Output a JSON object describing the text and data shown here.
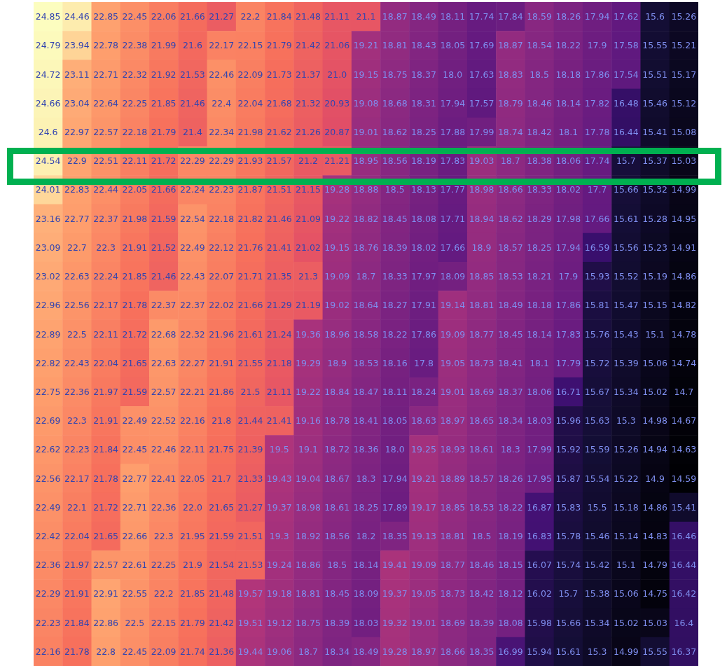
{
  "chart_data": {
    "type": "heatmap",
    "data_labels": true,
    "categories": [
      null,
      null,
      null,
      null,
      null,
      null,
      null,
      null,
      null,
      null,
      null,
      null,
      null,
      null,
      null,
      null,
      null,
      null,
      null,
      null,
      null,
      null,
      null
    ],
    "y_categories": [
      null,
      null,
      null,
      null,
      null,
      null,
      null,
      null,
      null,
      null,
      null,
      null,
      null,
      null,
      null,
      null,
      null,
      null,
      null,
      null,
      null,
      null,
      null
    ],
    "cells": [
      [
        24.85,
        24.46,
        22.85,
        22.45,
        22.06,
        21.66,
        21.27,
        22.2,
        21.84,
        21.48,
        21.11,
        21.1,
        18.87,
        18.49,
        18.11,
        17.74,
        17.84,
        18.59,
        18.26,
        17.94,
        17.62,
        15.6,
        15.26
      ],
      [
        24.79,
        23.94,
        22.78,
        22.38,
        21.99,
        21.6,
        22.17,
        22.15,
        21.79,
        21.42,
        21.06,
        19.21,
        18.81,
        18.43,
        18.05,
        17.69,
        18.87,
        18.54,
        18.22,
        17.9,
        17.58,
        15.55,
        15.21
      ],
      [
        24.72,
        23.11,
        22.71,
        22.32,
        21.92,
        21.53,
        22.46,
        22.09,
        21.73,
        21.37,
        21.0,
        19.15,
        18.75,
        18.37,
        18.0,
        17.63,
        18.83,
        18.5,
        18.18,
        17.86,
        17.54,
        15.51,
        15.17
      ],
      [
        24.66,
        23.04,
        22.64,
        22.25,
        21.85,
        21.46,
        22.4,
        22.04,
        21.68,
        21.32,
        20.93,
        19.08,
        18.68,
        18.31,
        17.94,
        17.57,
        18.79,
        18.46,
        18.14,
        17.82,
        16.48,
        15.46,
        15.12
      ],
      [
        24.6,
        22.97,
        22.57,
        22.18,
        21.79,
        21.4,
        22.34,
        21.98,
        21.62,
        21.26,
        20.87,
        19.01,
        18.62,
        18.25,
        17.88,
        17.99,
        18.74,
        18.42,
        18.1,
        17.78,
        16.44,
        15.41,
        15.08
      ],
      [
        24.54,
        22.9,
        22.51,
        22.11,
        21.72,
        22.29,
        22.29,
        21.93,
        21.57,
        21.2,
        21.21,
        18.95,
        18.56,
        18.19,
        17.83,
        19.03,
        18.7,
        18.38,
        18.06,
        17.74,
        15.7,
        15.37,
        15.03
      ],
      [
        24.01,
        22.83,
        22.44,
        22.05,
        21.66,
        22.24,
        22.23,
        21.87,
        21.51,
        21.15,
        19.28,
        18.88,
        18.5,
        18.13,
        17.77,
        18.98,
        18.66,
        18.33,
        18.02,
        17.7,
        15.66,
        15.32,
        14.99
      ],
      [
        23.16,
        22.77,
        22.37,
        21.98,
        21.59,
        22.54,
        22.18,
        21.82,
        21.46,
        21.09,
        19.22,
        18.82,
        18.45,
        18.08,
        17.71,
        18.94,
        18.62,
        18.29,
        17.98,
        17.66,
        15.61,
        15.28,
        14.95
      ],
      [
        23.09,
        22.7,
        22.3,
        21.91,
        21.52,
        22.49,
        22.12,
        21.76,
        21.41,
        21.02,
        19.15,
        18.76,
        18.39,
        18.02,
        17.66,
        18.9,
        18.57,
        18.25,
        17.94,
        16.59,
        15.56,
        15.23,
        14.91
      ],
      [
        23.02,
        22.63,
        22.24,
        21.85,
        21.46,
        22.43,
        22.07,
        21.71,
        21.35,
        21.3,
        19.09,
        18.7,
        18.33,
        17.97,
        18.09,
        18.85,
        18.53,
        18.21,
        17.9,
        15.93,
        15.52,
        15.19,
        14.86
      ],
      [
        22.96,
        22.56,
        22.17,
        21.78,
        22.37,
        22.37,
        22.02,
        21.66,
        21.29,
        21.19,
        19.02,
        18.64,
        18.27,
        17.91,
        19.14,
        18.81,
        18.49,
        18.18,
        17.86,
        15.81,
        15.47,
        15.15,
        14.82
      ],
      [
        22.89,
        22.5,
        22.11,
        21.72,
        22.68,
        22.32,
        21.96,
        21.61,
        21.24,
        19.36,
        18.96,
        18.58,
        18.22,
        17.86,
        19.09,
        18.77,
        18.45,
        18.14,
        17.83,
        15.76,
        15.43,
        15.1,
        14.78
      ],
      [
        22.82,
        22.43,
        22.04,
        21.65,
        22.63,
        22.27,
        21.91,
        21.55,
        21.18,
        19.29,
        18.9,
        18.53,
        18.16,
        17.8,
        19.05,
        18.73,
        18.41,
        18.1,
        17.79,
        15.72,
        15.39,
        15.06,
        14.74
      ],
      [
        22.75,
        22.36,
        21.97,
        21.59,
        22.57,
        22.21,
        21.86,
        21.5,
        21.11,
        19.22,
        18.84,
        18.47,
        18.11,
        18.24,
        19.01,
        18.69,
        18.37,
        18.06,
        16.71,
        15.67,
        15.34,
        15.02,
        14.7
      ],
      [
        22.69,
        22.3,
        21.91,
        22.49,
        22.52,
        22.16,
        21.8,
        21.44,
        21.41,
        19.16,
        18.78,
        18.41,
        18.05,
        18.63,
        18.97,
        18.65,
        18.34,
        18.03,
        15.96,
        15.63,
        15.3,
        14.98,
        14.67
      ],
      [
        22.62,
        22.23,
        21.84,
        22.45,
        22.46,
        22.11,
        21.75,
        21.39,
        19.5,
        19.1,
        18.72,
        18.36,
        18.0,
        19.25,
        18.93,
        18.61,
        18.3,
        17.99,
        15.92,
        15.59,
        15.26,
        14.94,
        14.63
      ],
      [
        22.56,
        22.17,
        21.78,
        22.77,
        22.41,
        22.05,
        21.7,
        21.33,
        19.43,
        19.04,
        18.67,
        18.3,
        17.94,
        19.21,
        18.89,
        18.57,
        18.26,
        17.95,
        15.87,
        15.54,
        15.22,
        14.9,
        14.59
      ],
      [
        22.49,
        22.1,
        21.72,
        22.71,
        22.36,
        22.0,
        21.65,
        21.27,
        19.37,
        18.98,
        18.61,
        18.25,
        17.89,
        19.17,
        18.85,
        18.53,
        18.22,
        16.87,
        15.83,
        15.5,
        15.18,
        14.86,
        15.41
      ],
      [
        22.42,
        22.04,
        21.65,
        22.66,
        22.3,
        21.95,
        21.59,
        21.51,
        19.3,
        18.92,
        18.56,
        18.2,
        18.35,
        19.13,
        18.81,
        18.5,
        18.19,
        16.83,
        15.78,
        15.46,
        15.14,
        14.83,
        16.46
      ],
      [
        22.36,
        21.97,
        22.57,
        22.61,
        22.25,
        21.9,
        21.54,
        21.53,
        19.24,
        18.86,
        18.5,
        18.14,
        19.41,
        19.09,
        18.77,
        18.46,
        18.15,
        16.07,
        15.74,
        15.42,
        15.1,
        14.79,
        16.44
      ],
      [
        22.29,
        21.91,
        22.91,
        22.55,
        22.2,
        21.85,
        21.48,
        19.57,
        19.18,
        18.81,
        18.45,
        18.09,
        19.37,
        19.05,
        18.73,
        18.42,
        18.12,
        16.02,
        15.7,
        15.38,
        15.06,
        14.75,
        16.42
      ],
      [
        22.23,
        21.84,
        22.86,
        22.5,
        22.15,
        21.79,
        21.42,
        19.51,
        19.12,
        18.75,
        18.39,
        18.03,
        19.32,
        19.01,
        18.69,
        18.39,
        18.08,
        15.98,
        15.66,
        15.34,
        15.02,
        15.03,
        16.4
      ],
      [
        22.16,
        21.78,
        22.8,
        22.45,
        22.09,
        21.74,
        21.36,
        19.44,
        19.06,
        18.7,
        18.34,
        18.49,
        19.28,
        18.97,
        18.66,
        18.35,
        16.99,
        15.94,
        15.61,
        15.3,
        14.99,
        15.55,
        16.37
      ]
    ],
    "cell_labels": [
      [
        "24.85",
        "24.46",
        "22.85",
        "22.45",
        "22.06",
        "21.66",
        "21.27",
        "22.2",
        "21.84",
        "21.48",
        "21.11",
        "21.1",
        "18.87",
        "18.49",
        "18.11",
        "17.74",
        "17.84",
        "18.59",
        "18.26",
        "17.94",
        "17.62",
        "15.6",
        "15.26"
      ],
      [
        "24.79",
        "23.94",
        "22.78",
        "22.38",
        "21.99",
        "21.6",
        "22.17",
        "22.15",
        "21.79",
        "21.42",
        "21.06",
        "19.21",
        "18.81",
        "18.43",
        "18.05",
        "17.69",
        "18.87",
        "18.54",
        "18.22",
        "17.9",
        "17.58",
        "15.55",
        "15.21"
      ],
      [
        "24.72",
        "23.11",
        "22.71",
        "22.32",
        "21.92",
        "21.53",
        "22.46",
        "22.09",
        "21.73",
        "21.37",
        "21.0",
        "19.15",
        "18.75",
        "18.37",
        "18.0",
        "17.63",
        "18.83",
        "18.5",
        "18.18",
        "17.86",
        "17.54",
        "15.51",
        "15.17"
      ],
      [
        "24.66",
        "23.04",
        "22.64",
        "22.25",
        "21.85",
        "21.46",
        "22.4",
        "22.04",
        "21.68",
        "21.32",
        "20.93",
        "19.08",
        "18.68",
        "18.31",
        "17.94",
        "17.57",
        "18.79",
        "18.46",
        "18.14",
        "17.82",
        "16.48",
        "15.46",
        "15.12"
      ],
      [
        "24.6",
        "22.97",
        "22.57",
        "22.18",
        "21.79",
        "21.4",
        "22.34",
        "21.98",
        "21.62",
        "21.26",
        "20.87",
        "19.01",
        "18.62",
        "18.25",
        "17.88",
        "17.99",
        "18.74",
        "18.42",
        "18.1",
        "17.78",
        "16.44",
        "15.41",
        "15.08"
      ],
      [
        "24.54",
        "22.9",
        "22.51",
        "22.11",
        "21.72",
        "22.29",
        "22.29",
        "21.93",
        "21.57",
        "21.2",
        "21.21",
        "18.95",
        "18.56",
        "18.19",
        "17.83",
        "19.03",
        "18.7",
        "18.38",
        "18.06",
        "17.74",
        "15.7",
        "15.37",
        "15.03"
      ],
      [
        "24.01",
        "22.83",
        "22.44",
        "22.05",
        "21.66",
        "22.24",
        "22.23",
        "21.87",
        "21.51",
        "21.15",
        "19.28",
        "18.88",
        "18.5",
        "18.13",
        "17.77",
        "18.98",
        "18.66",
        "18.33",
        "18.02",
        "17.7",
        "15.66",
        "15.32",
        "14.99"
      ],
      [
        "23.16",
        "22.77",
        "22.37",
        "21.98",
        "21.59",
        "22.54",
        "22.18",
        "21.82",
        "21.46",
        "21.09",
        "19.22",
        "18.82",
        "18.45",
        "18.08",
        "17.71",
        "18.94",
        "18.62",
        "18.29",
        "17.98",
        "17.66",
        "15.61",
        "15.28",
        "14.95"
      ],
      [
        "23.09",
        "22.7",
        "22.3",
        "21.91",
        "21.52",
        "22.49",
        "22.12",
        "21.76",
        "21.41",
        "21.02",
        "19.15",
        "18.76",
        "18.39",
        "18.02",
        "17.66",
        "18.9",
        "18.57",
        "18.25",
        "17.94",
        "16.59",
        "15.56",
        "15.23",
        "14.91"
      ],
      [
        "23.02",
        "22.63",
        "22.24",
        "21.85",
        "21.46",
        "22.43",
        "22.07",
        "21.71",
        "21.35",
        "21.3",
        "19.09",
        "18.7",
        "18.33",
        "17.97",
        "18.09",
        "18.85",
        "18.53",
        "18.21",
        "17.9",
        "15.93",
        "15.52",
        "15.19",
        "14.86"
      ],
      [
        "22.96",
        "22.56",
        "22.17",
        "21.78",
        "22.37",
        "22.37",
        "22.02",
        "21.66",
        "21.29",
        "21.19",
        "19.02",
        "18.64",
        "18.27",
        "17.91",
        "19.14",
        "18.81",
        "18.49",
        "18.18",
        "17.86",
        "15.81",
        "15.47",
        "15.15",
        "14.82"
      ],
      [
        "22.89",
        "22.5",
        "22.11",
        "21.72",
        "22.68",
        "22.32",
        "21.96",
        "21.61",
        "21.24",
        "19.36",
        "18.96",
        "18.58",
        "18.22",
        "17.86",
        "19.09",
        "18.77",
        "18.45",
        "18.14",
        "17.83",
        "15.76",
        "15.43",
        "15.1",
        "14.78"
      ],
      [
        "22.82",
        "22.43",
        "22.04",
        "21.65",
        "22.63",
        "22.27",
        "21.91",
        "21.55",
        "21.18",
        "19.29",
        "18.9",
        "18.53",
        "18.16",
        "17.8",
        "19.05",
        "18.73",
        "18.41",
        "18.1",
        "17.79",
        "15.72",
        "15.39",
        "15.06",
        "14.74"
      ],
      [
        "22.75",
        "22.36",
        "21.97",
        "21.59",
        "22.57",
        "22.21",
        "21.86",
        "21.5",
        "21.11",
        "19.22",
        "18.84",
        "18.47",
        "18.11",
        "18.24",
        "19.01",
        "18.69",
        "18.37",
        "18.06",
        "16.71",
        "15.67",
        "15.34",
        "15.02",
        "14.7"
      ],
      [
        "22.69",
        "22.3",
        "21.91",
        "22.49",
        "22.52",
        "22.16",
        "21.8",
        "21.44",
        "21.41",
        "19.16",
        "18.78",
        "18.41",
        "18.05",
        "18.63",
        "18.97",
        "18.65",
        "18.34",
        "18.03",
        "15.96",
        "15.63",
        "15.3",
        "14.98",
        "14.67"
      ],
      [
        "22.62",
        "22.23",
        "21.84",
        "22.45",
        "22.46",
        "22.11",
        "21.75",
        "21.39",
        "19.5",
        "19.1",
        "18.72",
        "18.36",
        "18.0",
        "19.25",
        "18.93",
        "18.61",
        "18.3",
        "17.99",
        "15.92",
        "15.59",
        "15.26",
        "14.94",
        "14.63"
      ],
      [
        "22.56",
        "22.17",
        "21.78",
        "22.77",
        "22.41",
        "22.05",
        "21.7",
        "21.33",
        "19.43",
        "19.04",
        "18.67",
        "18.3",
        "17.94",
        "19.21",
        "18.89",
        "18.57",
        "18.26",
        "17.95",
        "15.87",
        "15.54",
        "15.22",
        "14.9",
        "14.59"
      ],
      [
        "22.49",
        "22.1",
        "21.72",
        "22.71",
        "22.36",
        "22.0",
        "21.65",
        "21.27",
        "19.37",
        "18.98",
        "18.61",
        "18.25",
        "17.89",
        "19.17",
        "18.85",
        "18.53",
        "18.22",
        "16.87",
        "15.83",
        "15.5",
        "15.18",
        "14.86",
        "15.41"
      ],
      [
        "22.42",
        "22.04",
        "21.65",
        "22.66",
        "22.3",
        "21.95",
        "21.59",
        "21.51",
        "19.3",
        "18.92",
        "18.56",
        "18.2",
        "18.35",
        "19.13",
        "18.81",
        "18.5",
        "18.19",
        "16.83",
        "15.78",
        "15.46",
        "15.14",
        "14.83",
        "16.46"
      ],
      [
        "22.36",
        "21.97",
        "22.57",
        "22.61",
        "22.25",
        "21.9",
        "21.54",
        "21.53",
        "19.24",
        "18.86",
        "18.5",
        "18.14",
        "19.41",
        "19.09",
        "18.77",
        "18.46",
        "18.15",
        "16.07",
        "15.74",
        "15.42",
        "15.1",
        "14.79",
        "16.44"
      ],
      [
        "22.29",
        "21.91",
        "22.91",
        "22.55",
        "22.2",
        "21.85",
        "21.48",
        "19.57",
        "19.18",
        "18.81",
        "18.45",
        "18.09",
        "19.37",
        "19.05",
        "18.73",
        "18.42",
        "18.12",
        "16.02",
        "15.7",
        "15.38",
        "15.06",
        "14.75",
        "16.42"
      ],
      [
        "22.23",
        "21.84",
        "22.86",
        "22.5",
        "22.15",
        "21.79",
        "21.42",
        "19.51",
        "19.12",
        "18.75",
        "18.39",
        "18.03",
        "19.32",
        "19.01",
        "18.69",
        "18.39",
        "18.08",
        "15.98",
        "15.66",
        "15.34",
        "15.02",
        "15.03",
        "16.4"
      ],
      [
        "22.16",
        "21.78",
        "22.8",
        "22.45",
        "22.09",
        "21.74",
        "21.36",
        "19.44",
        "19.06",
        "18.7",
        "18.34",
        "18.49",
        "19.28",
        "18.97",
        "18.66",
        "18.35",
        "16.99",
        "15.94",
        "15.61",
        "15.3",
        "14.99",
        "15.55",
        "16.37"
      ]
    ]
  }
}
